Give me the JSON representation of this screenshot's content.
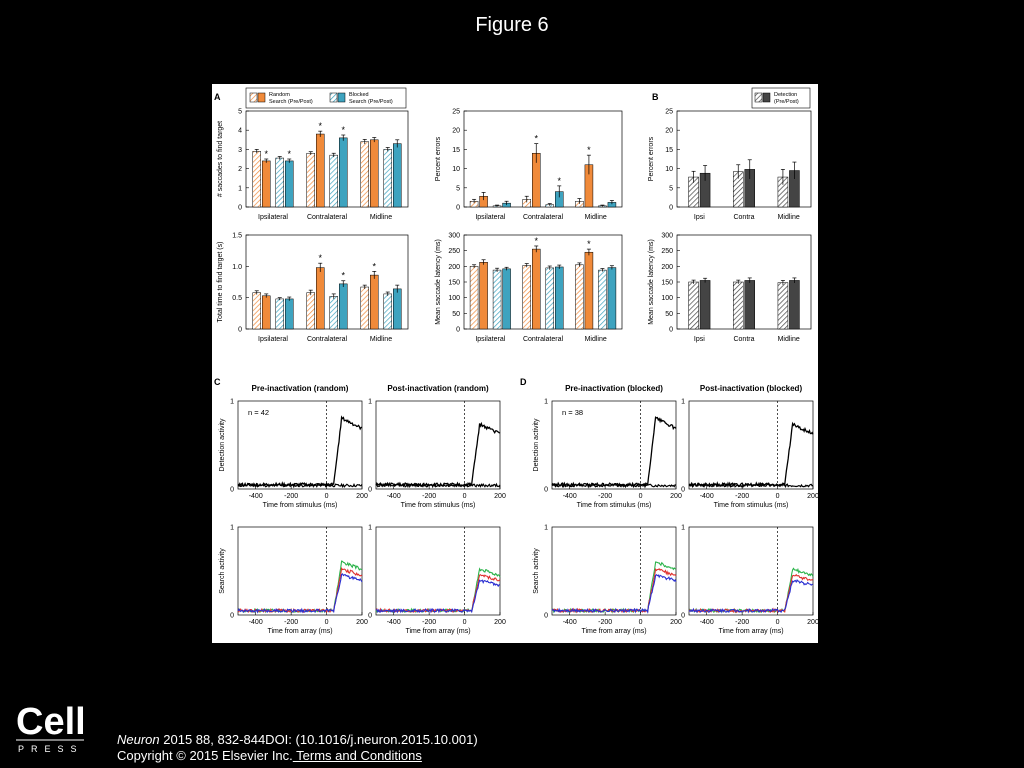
{
  "page": {
    "title": "Figure 6"
  },
  "footer": {
    "journal": "Neuron",
    "citation": " 2015 88, 832-844DOI: (10.1016/j.neuron.2015.10.001)",
    "copyright": "Copyright © 2015 Elsevier Inc.",
    "terms_link": " Terms and Conditions",
    "logo_word": "Cell",
    "logo_sub": "PRESS"
  },
  "colors": {
    "random": "#f08a3a",
    "blocked": "#3ea3bf",
    "detection": "#444444",
    "green": "#2bb34a",
    "red": "#e0312f",
    "blue": "#2a2fd1"
  },
  "panel_letters": [
    "A",
    "B",
    "C",
    "D"
  ],
  "legends": {
    "random": "Random\nSearch (Pre/Post)",
    "blocked": "Blocked\nSearch (Pre/Post)",
    "detection": "Detection\n(Pre/Post)"
  },
  "chart_data": [
    {
      "type": "bar",
      "panel": "A",
      "ylabel": "# saccades to find target",
      "ylim": [
        0,
        5
      ],
      "yticks": [
        0,
        1,
        2,
        3,
        4,
        5
      ],
      "groups": [
        "Ipsilateral",
        "Contralateral",
        "Midline"
      ],
      "series_order": [
        "Random pre",
        "Random post",
        "Blocked pre",
        "Blocked post"
      ],
      "values": [
        [
          2.9,
          2.4,
          2.55,
          2.4
        ],
        [
          2.8,
          3.8,
          2.7,
          3.6
        ],
        [
          3.4,
          3.5,
          3.0,
          3.3
        ]
      ],
      "errors": [
        [
          0.1,
          0.1,
          0.08,
          0.1
        ],
        [
          0.08,
          0.15,
          0.1,
          0.15
        ],
        [
          0.12,
          0.12,
          0.1,
          0.2
        ]
      ],
      "significant": [
        [
          false,
          true,
          false,
          true
        ],
        [
          false,
          true,
          false,
          true
        ],
        [
          false,
          false,
          false,
          false
        ]
      ]
    },
    {
      "type": "bar",
      "panel": "A",
      "ylabel": "Percent errors",
      "ylim": [
        0,
        25
      ],
      "yticks": [
        0,
        5,
        10,
        15,
        20,
        25
      ],
      "groups": [
        "Ipsilateral",
        "Contralateral",
        "Midline"
      ],
      "values": [
        [
          1.5,
          2.8,
          0.3,
          1.0
        ],
        [
          2.0,
          14.0,
          0.6,
          4.0
        ],
        [
          1.5,
          11.0,
          0.3,
          1.2
        ]
      ],
      "errors": [
        [
          0.5,
          1.0,
          0.2,
          0.5
        ],
        [
          0.8,
          2.5,
          0.3,
          1.5
        ],
        [
          0.7,
          2.5,
          0.2,
          0.5
        ]
      ],
      "significant": [
        [
          false,
          false,
          false,
          false
        ],
        [
          false,
          true,
          false,
          true
        ],
        [
          false,
          true,
          false,
          false
        ]
      ]
    },
    {
      "type": "bar",
      "panel": "B",
      "ylabel": "Percent errors",
      "ylim": [
        0,
        25
      ],
      "yticks": [
        0,
        5,
        10,
        15,
        20,
        25
      ],
      "groups": [
        "Ipsi",
        "Contra",
        "Midline"
      ],
      "series_order": [
        "Detection pre",
        "Detection post"
      ],
      "values": [
        [
          7.8,
          8.8
        ],
        [
          9.2,
          9.8
        ],
        [
          7.8,
          9.5
        ]
      ],
      "errors": [
        [
          1.5,
          2.0
        ],
        [
          1.8,
          2.5
        ],
        [
          2.0,
          2.2
        ]
      ]
    },
    {
      "type": "bar",
      "panel": "A",
      "ylabel": "Total time to find target (s)",
      "ylim": [
        0,
        1.5
      ],
      "yticks": [
        "0",
        "0.5",
        "1.0",
        "1.5"
      ],
      "groups": [
        "Ipsilateral",
        "Contralateral",
        "Midline"
      ],
      "values": [
        [
          0.58,
          0.53,
          0.48,
          0.48
        ],
        [
          0.58,
          0.98,
          0.52,
          0.72
        ],
        [
          0.67,
          0.86,
          0.56,
          0.64
        ]
      ],
      "errors": [
        [
          0.03,
          0.03,
          0.02,
          0.03
        ],
        [
          0.04,
          0.07,
          0.04,
          0.05
        ],
        [
          0.03,
          0.06,
          0.03,
          0.06
        ]
      ],
      "significant": [
        [
          false,
          false,
          false,
          false
        ],
        [
          false,
          true,
          false,
          true
        ],
        [
          false,
          true,
          false,
          false
        ]
      ]
    },
    {
      "type": "bar",
      "panel": "A",
      "ylabel": "Mean saccade latency (ms)",
      "ylim": [
        0,
        300
      ],
      "yticks": [
        0,
        50,
        100,
        150,
        200,
        250,
        300
      ],
      "groups": [
        "Ipsilateral",
        "Contralateral",
        "Midline"
      ],
      "values": [
        [
          200,
          213,
          188,
          192
        ],
        [
          203,
          255,
          195,
          198
        ],
        [
          205,
          245,
          188,
          196
        ]
      ],
      "errors": [
        [
          5,
          8,
          6,
          5
        ],
        [
          6,
          10,
          6,
          6
        ],
        [
          6,
          10,
          5,
          6
        ]
      ],
      "significant": [
        [
          false,
          false,
          false,
          false
        ],
        [
          false,
          true,
          false,
          false
        ],
        [
          false,
          true,
          false,
          false
        ]
      ]
    },
    {
      "type": "bar",
      "panel": "B",
      "ylabel": "Mean saccade latency (ms)",
      "ylim": [
        0,
        300
      ],
      "yticks": [
        0,
        50,
        100,
        150,
        200,
        250,
        300
      ],
      "groups": [
        "Ipsi",
        "Contra",
        "Midline"
      ],
      "values": [
        [
          150,
          155
        ],
        [
          150,
          155
        ],
        [
          148,
          155
        ]
      ],
      "errors": [
        [
          6,
          7
        ],
        [
          6,
          8
        ],
        [
          7,
          8
        ]
      ]
    },
    {
      "type": "line",
      "panel": "C",
      "title": "Pre-inactivation (random)",
      "ylabel": "Detection activity",
      "xlabel": "Time from stimulus (ms)",
      "annotation": "n = 42",
      "xlim": [
        -500,
        200
      ],
      "ylim": [
        0,
        1
      ],
      "xticks": [
        -400,
        -200,
        0,
        200
      ],
      "yticks": [
        0,
        1
      ]
    },
    {
      "type": "line",
      "panel": "C",
      "title": "Post-inactivation (random)",
      "xlabel": "Time from stimulus (ms)",
      "xlim": [
        -500,
        200
      ],
      "ylim": [
        0,
        1
      ],
      "xticks": [
        -400,
        -200,
        0,
        200
      ],
      "yticks": [
        0,
        1
      ]
    },
    {
      "type": "line",
      "panel": "D",
      "title": "Pre-inactivation (blocked)",
      "ylabel": "Detection activity",
      "xlabel": "Time from stimulus (ms)",
      "annotation": "n = 38",
      "xlim": [
        -500,
        200
      ],
      "ylim": [
        0,
        1
      ],
      "xticks": [
        -400,
        -200,
        0,
        200
      ],
      "yticks": [
        0,
        1
      ]
    },
    {
      "type": "line",
      "panel": "D",
      "title": "Post-inactivation (blocked)",
      "xlabel": "Time from stimulus (ms)",
      "xlim": [
        -500,
        200
      ],
      "ylim": [
        0,
        1
      ],
      "xticks": [
        -400,
        -200,
        0,
        200
      ],
      "yticks": [
        0,
        1
      ]
    },
    {
      "type": "line",
      "panel": "C",
      "ylabel": "Search activity",
      "xlabel": "Time from array (ms)",
      "xlim": [
        -500,
        200
      ],
      "ylim": [
        0,
        1
      ],
      "xticks": [
        -400,
        -200,
        0,
        200
      ],
      "yticks": [
        0,
        1
      ]
    },
    {
      "type": "line",
      "panel": "C",
      "xlabel": "Time from array (ms)",
      "xlim": [
        -500,
        200
      ],
      "ylim": [
        0,
        1
      ],
      "xticks": [
        -400,
        -200,
        0,
        200
      ],
      "yticks": [
        0,
        1
      ]
    },
    {
      "type": "line",
      "panel": "D",
      "ylabel": "Search activity",
      "xlabel": "Time from array (ms)",
      "xlim": [
        -500,
        200
      ],
      "ylim": [
        0,
        1
      ],
      "xticks": [
        -400,
        -200,
        0,
        200
      ],
      "yticks": [
        0,
        1
      ]
    },
    {
      "type": "line",
      "panel": "D",
      "xlabel": "Time from array (ms)",
      "xlim": [
        -500,
        200
      ],
      "ylim": [
        0,
        1
      ],
      "xticks": [
        -400,
        -200,
        0,
        200
      ],
      "yticks": [
        0,
        1
      ]
    }
  ]
}
